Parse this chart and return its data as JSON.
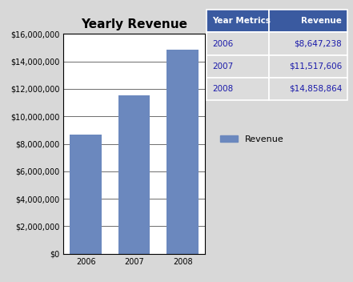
{
  "title": "Yearly Revenue",
  "years": [
    "2006",
    "2007",
    "2008"
  ],
  "values": [
    8647238,
    11517606,
    14858864
  ],
  "bar_color": "#6B88BE",
  "ylim": [
    0,
    16000000
  ],
  "yticks": [
    0,
    2000000,
    4000000,
    6000000,
    8000000,
    10000000,
    12000000,
    14000000,
    16000000
  ],
  "ytick_labels": [
    "$0",
    "$2,000,000",
    "$4,000,000",
    "$6,000,000",
    "$8,000,000",
    "$10,000,000",
    "$12,000,000",
    "$14,000,000",
    "$16,000,000"
  ],
  "legend_label": "Revenue",
  "table_headers": [
    "Year Metrics",
    "Revenue"
  ],
  "table_rows": [
    [
      "2006",
      "$8,647,238"
    ],
    [
      "2007",
      "$11,517,606"
    ],
    [
      "2008",
      "$14,858,864"
    ]
  ],
  "table_header_bg": "#3A5AA0",
  "table_header_fg": "#FFFFFF",
  "table_row_fg": "#1a1aaa",
  "table_row_bg": "#DCDCDC",
  "background_color": "#D8D8D8",
  "title_fontsize": 11,
  "tick_fontsize": 7,
  "legend_fontsize": 8,
  "table_fontsize": 7.5
}
